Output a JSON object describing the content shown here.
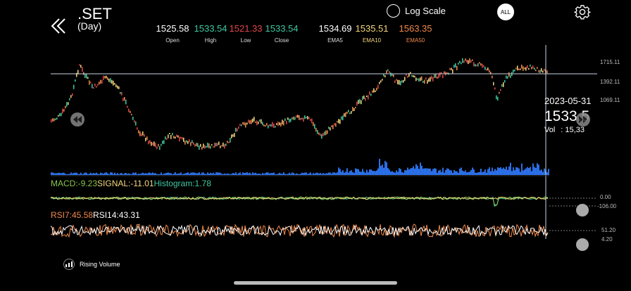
{
  "header": {
    "symbol": ".SET",
    "period": "(Day)",
    "log_scale_label": "Log Scale",
    "all_label": "ALL"
  },
  "quotes": [
    {
      "label": "Open",
      "value": "1525.58",
      "color": "#ffffff"
    },
    {
      "label": "High",
      "value": "1533.54",
      "color": "#3fc9a0"
    },
    {
      "label": "Low",
      "value": "1521.33",
      "color": "#e0474c"
    },
    {
      "label": "Close",
      "value": "1533.54",
      "color": "#3fc9a0"
    },
    {
      "label": "EMA5",
      "value": "1534.69",
      "color": "#ffffff"
    },
    {
      "label": "EMA10",
      "value": "1535.51",
      "color": "#f4d77c"
    },
    {
      "label": "EMA50",
      "value": "1563.35",
      "color": "#f08a4b"
    }
  ],
  "price_axis": {
    "ticks": [
      "1715.11",
      "1392.11",
      "1069.11"
    ]
  },
  "tooltip": {
    "date": "2023-05-31",
    "price": "1533.5",
    "vol_label": "Vol",
    "vol_value": ": 15,33"
  },
  "macd": {
    "macd_text": "MACD:-9.23",
    "signal_text": "SIGNAL:-11.01",
    "hist_text": "Histogram:1.78",
    "axis_ticks": [
      "0.00",
      "-106.00"
    ],
    "colors": {
      "macd": "#8bc34a",
      "signal": "#f4d77c",
      "hist": "#3fc9a0"
    }
  },
  "rsi": {
    "rsi7_text": "RSI7:45.58",
    "rsi14_text": "RSI14:43.31",
    "axis_ticks": [
      "51.20",
      "4.20"
    ],
    "colors": {
      "rsi7": "#f08a4b",
      "rsi14": "#ffffff"
    }
  },
  "legend": {
    "label": "Rising Volume"
  },
  "colors": {
    "up": "#3fc9a0",
    "down": "#e0474c",
    "volume": "#2f7bff"
  }
}
